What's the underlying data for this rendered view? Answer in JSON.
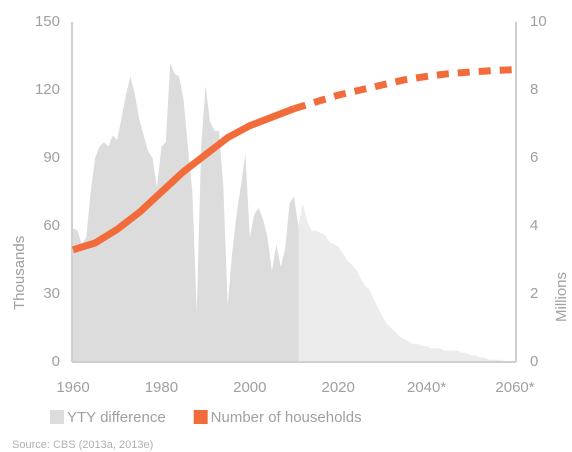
{
  "chart_data": {
    "type": "area-line",
    "x": [
      1960,
      1961,
      1962,
      1963,
      1964,
      1965,
      1966,
      1967,
      1968,
      1969,
      1970,
      1971,
      1972,
      1973,
      1974,
      1975,
      1976,
      1977,
      1978,
      1979,
      1980,
      1981,
      1982,
      1983,
      1984,
      1985,
      1986,
      1987,
      1988,
      1989,
      1990,
      1991,
      1992,
      1993,
      1994,
      1995,
      1996,
      1997,
      1998,
      1999,
      2000,
      2001,
      2002,
      2003,
      2004,
      2005,
      2006,
      2007,
      2008,
      2009,
      2010,
      2011,
      2012,
      2013,
      2014,
      2015,
      2016,
      2017,
      2018,
      2019,
      2020,
      2021,
      2022,
      2023,
      2024,
      2025,
      2026,
      2027,
      2028,
      2029,
      2030,
      2031,
      2032,
      2033,
      2034,
      2035,
      2036,
      2037,
      2038,
      2039,
      2040,
      2041,
      2042,
      2043,
      2044,
      2045,
      2046,
      2047,
      2048,
      2049,
      2050,
      2051,
      2052,
      2053,
      2054,
      2055,
      2056,
      2057,
      2058,
      2059,
      2060
    ],
    "series": [
      {
        "name": "YTY difference",
        "color": "#dcdcdc",
        "projection_color": "#ececec",
        "values": [
          59,
          58,
          52,
          55,
          75,
          90,
          95,
          97,
          95,
          100,
          98,
          108,
          118,
          126,
          118,
          107,
          100,
          93,
          90,
          77,
          95,
          97,
          132,
          127,
          126,
          116,
          95,
          75,
          22,
          95,
          122,
          106,
          102,
          102,
          78,
          25,
          48,
          65,
          78,
          92,
          55,
          65,
          68,
          63,
          55,
          40,
          52,
          42,
          50,
          70,
          73,
          60,
          70,
          62,
          58,
          58,
          57,
          56,
          53,
          52,
          51,
          48,
          45,
          43,
          41,
          37,
          34,
          32,
          28,
          24,
          20,
          17,
          15,
          13,
          11,
          10,
          9,
          8,
          8,
          7,
          7,
          6,
          6,
          6,
          5,
          5,
          5,
          5,
          4,
          4,
          3,
          3,
          2,
          2,
          1,
          1,
          1,
          1,
          0,
          0,
          0
        ]
      },
      {
        "name": "Number of households",
        "color": "#f26b3a",
        "axis": "y2",
        "x": [
          1960,
          1965,
          1970,
          1975,
          1980,
          1985,
          1990,
          1995,
          2000,
          2005,
          2010,
          2015,
          2020,
          2025,
          2030,
          2035,
          2040,
          2045,
          2050,
          2055,
          2060
        ],
        "values": [
          3.3,
          3.5,
          3.9,
          4.4,
          5.0,
          5.6,
          6.1,
          6.6,
          6.95,
          7.2,
          7.45,
          7.65,
          7.85,
          8.0,
          8.15,
          8.3,
          8.4,
          8.48,
          8.53,
          8.57,
          8.6
        ]
      }
    ],
    "projection_from": 2011,
    "xlim": [
      1960,
      2060
    ],
    "xticks": [
      1960,
      1980,
      2000,
      2020,
      {
        "value": 2040,
        "label": "2040*"
      },
      {
        "value": 2060,
        "label": "2060*"
      }
    ],
    "ylim": [
      0,
      150
    ],
    "yticks": [
      0,
      30,
      60,
      90,
      120,
      150
    ],
    "y2lim": [
      0,
      10
    ],
    "y2ticks": [
      0,
      2,
      4,
      6,
      8,
      10
    ],
    "ylabel": "Thousands",
    "y2label": "Millions",
    "source": "Source: CBS (2013a, 2013e)"
  }
}
